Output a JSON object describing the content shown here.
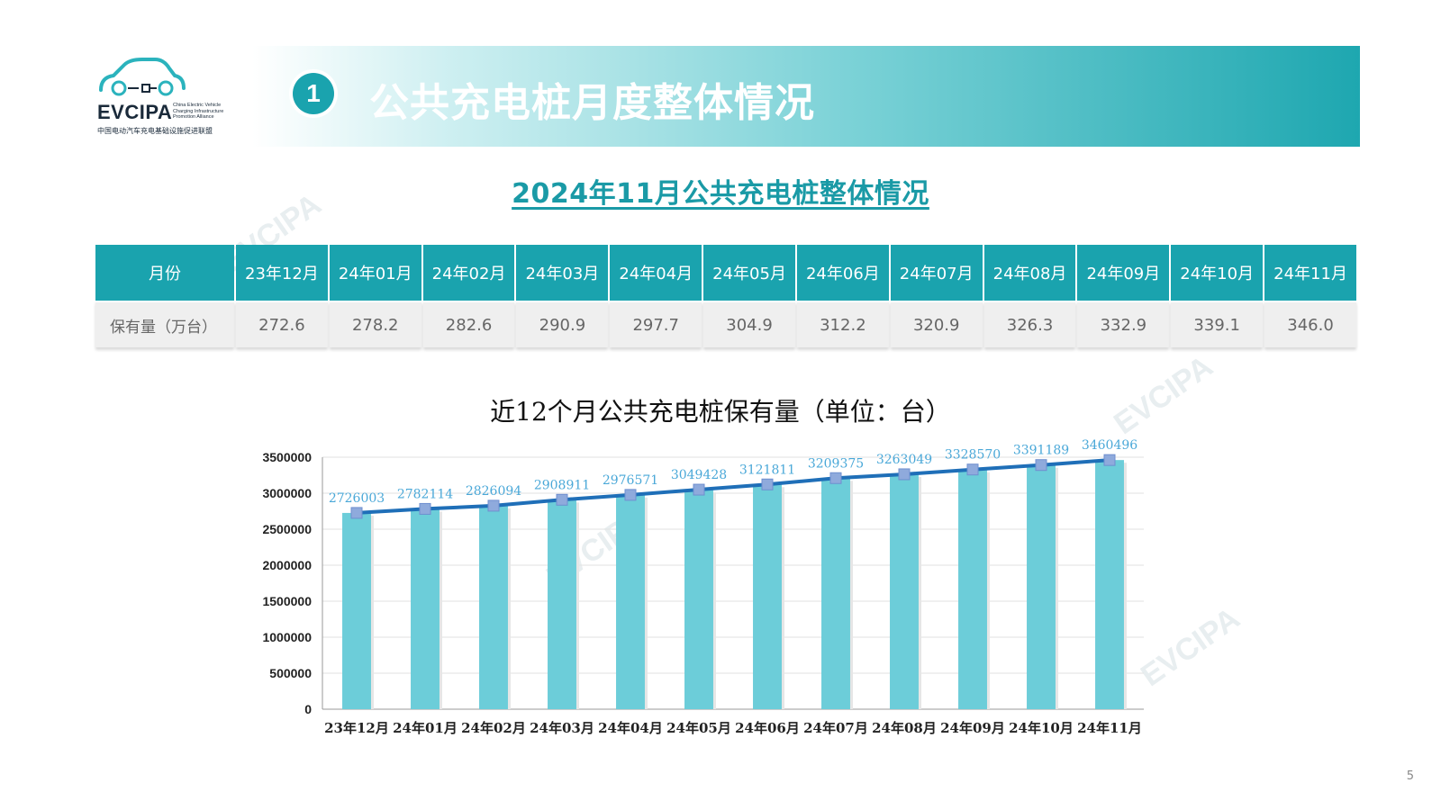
{
  "logo": {
    "brand": "EVCIPA",
    "brand_en": "China Electric Vehicle Charging Infrastructure Promotion Alliance",
    "brand_cn": "中国电动汽车充电基础设施促进联盟"
  },
  "header": {
    "section_number": "1",
    "title": "公共充电桩月度整体情况"
  },
  "subtitle": "2024年11月公共充电桩整体情况",
  "table": {
    "row_label_header": "月份",
    "row_label_values": "保有量（万台）",
    "months": [
      "23年12月",
      "24年01月",
      "24年02月",
      "24年03月",
      "24年04月",
      "24年05月",
      "24年06月",
      "24年07月",
      "24年08月",
      "24年09月",
      "24年10月",
      "24年11月"
    ],
    "values": [
      "272.6",
      "278.2",
      "282.6",
      "290.9",
      "297.7",
      "304.9",
      "312.2",
      "320.9",
      "326.3",
      "332.9",
      "339.1",
      "346.0"
    ]
  },
  "chart_data": {
    "type": "bar",
    "title": "近12个月公共充电桩保有量（单位：台）",
    "categories": [
      "23年12月",
      "24年01月",
      "24年02月",
      "24年03月",
      "24年04月",
      "24年05月",
      "24年06月",
      "24年07月",
      "24年08月",
      "24年09月",
      "24年10月",
      "24年11月"
    ],
    "series": [
      {
        "type": "bar",
        "values": [
          2726003,
          2782114,
          2826094,
          2908911,
          2976571,
          3049428,
          3121811,
          3209375,
          3263049,
          3328570,
          3391189,
          3460496
        ]
      },
      {
        "type": "line",
        "values": [
          2726003,
          2782114,
          2826094,
          2908911,
          2976571,
          3049428,
          3121811,
          3209375,
          3263049,
          3328570,
          3391189,
          3460496
        ]
      }
    ],
    "ylim": [
      0,
      3500000
    ],
    "yticks": [
      0,
      500000,
      1000000,
      1500000,
      2000000,
      2500000,
      3000000,
      3500000
    ],
    "ytick_labels": [
      "0",
      "500000",
      "1000000",
      "1500000",
      "2000000",
      "2500000",
      "3000000",
      "3500000"
    ],
    "grid": true,
    "colors": {
      "bar": "#6ccdd9",
      "line": "#1f6fb8",
      "marker": "#8faadc",
      "label": "#4aa8d8"
    }
  },
  "page_number": "5",
  "watermark_text": "EVCIPA"
}
